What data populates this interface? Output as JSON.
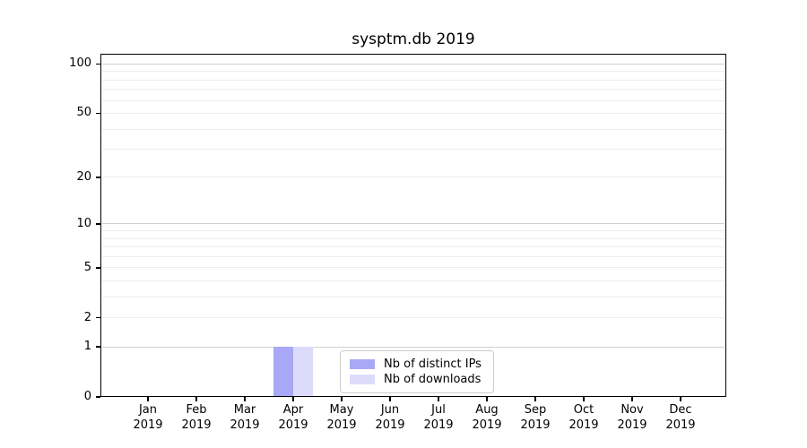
{
  "chart_data": {
    "type": "bar",
    "title": "sysptm.db 2019",
    "categories": [
      "Jan",
      "Feb",
      "Mar",
      "Apr",
      "May",
      "Jun",
      "Jul",
      "Aug",
      "Sep",
      "Oct",
      "Nov",
      "Dec"
    ],
    "x_year_label": "2019",
    "series": [
      {
        "name": "Nb of distinct IPs",
        "color": "#a8a8f6",
        "values": [
          0,
          0,
          0,
          1,
          0,
          0,
          0,
          0,
          0,
          0,
          0,
          0
        ]
      },
      {
        "name": "Nb of downloads",
        "color": "#dcdcfa",
        "values": [
          0,
          0,
          0,
          1,
          0,
          0,
          0,
          0,
          0,
          0,
          0,
          0
        ]
      }
    ],
    "yticks": [
      0,
      1,
      2,
      5,
      10,
      20,
      50,
      100
    ],
    "minor_gridlines": [
      2,
      3,
      4,
      5,
      6,
      7,
      8,
      9,
      20,
      30,
      40,
      50,
      60,
      70,
      80,
      90
    ],
    "major_gridlines": [
      1,
      10,
      100
    ],
    "scale": "log1p",
    "ylim": [
      0,
      115.5
    ],
    "grid": "both",
    "legend_position": "lower center",
    "colors": {
      "axis": "#000000",
      "grid_major": "#d0d0d0",
      "grid_minor": "#ededed",
      "background": "#ffffff"
    }
  }
}
